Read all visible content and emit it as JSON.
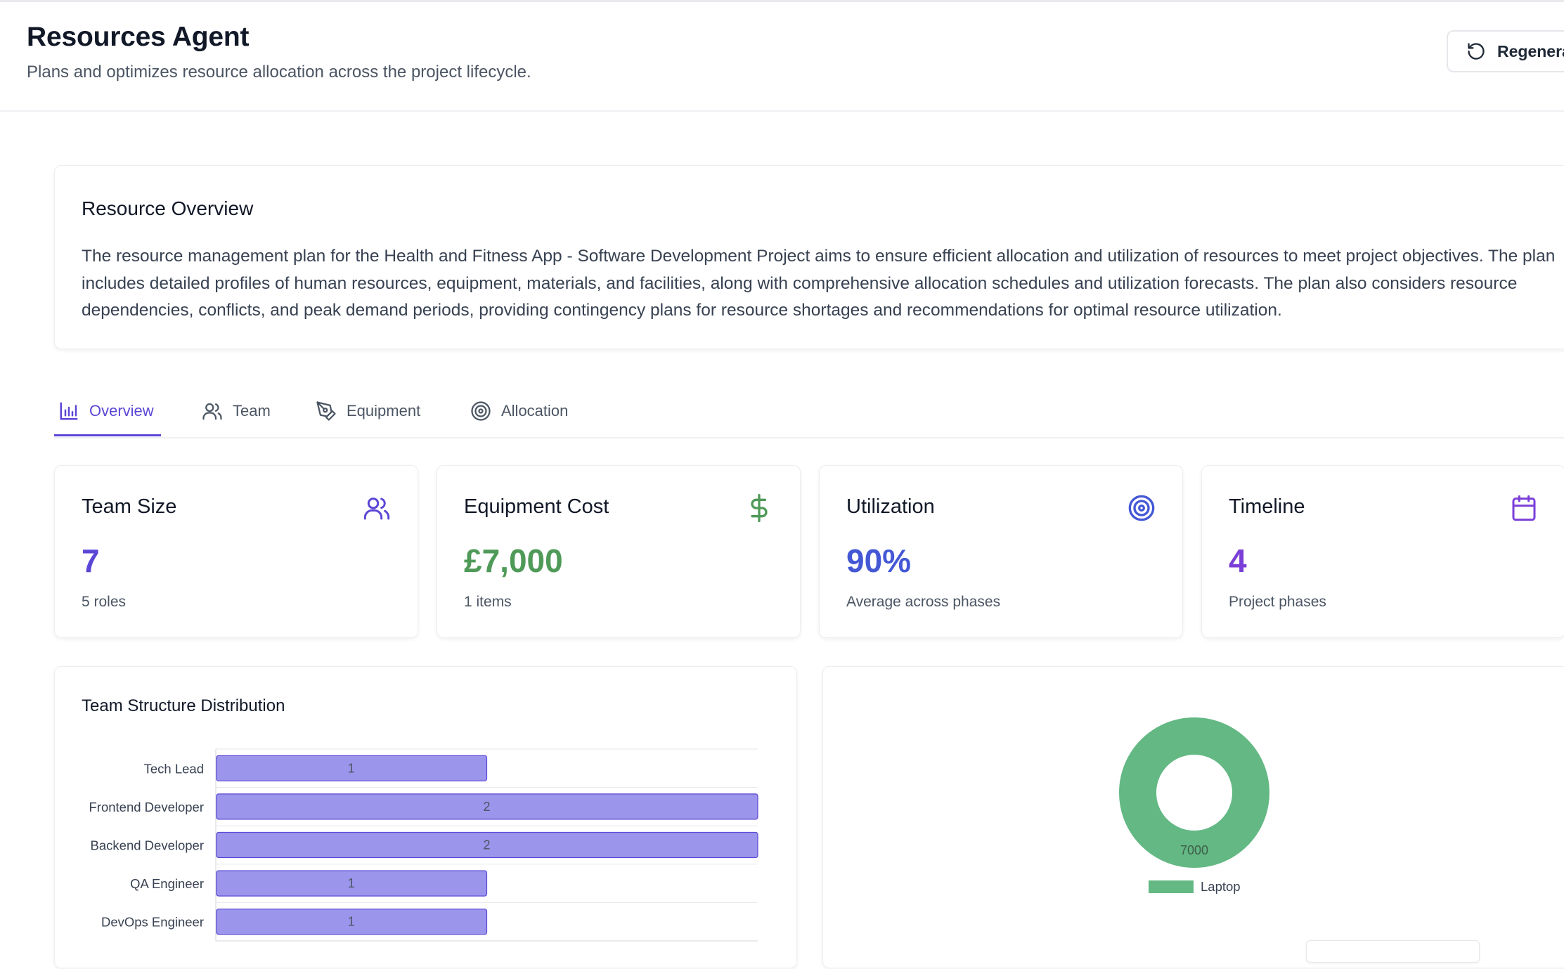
{
  "header": {
    "title": "Resources Agent",
    "subtitle": "Plans and optimizes resource allocation across the project lifecycle.",
    "regenerate_label": "Regenerate",
    "regenerate_icon": "rotate-ccw-icon"
  },
  "overview": {
    "title": "Resource Overview",
    "text": "The resource management plan for the Health and Fitness App - Software Development Project aims to ensure efficient allocation and utilization of resources to meet project objectives. The plan includes detailed profiles of human resources, equipment, materials, and facilities, along with comprehensive allocation schedules and utilization forecasts. The plan also considers resource dependencies, conflicts, and peak demand periods, providing contingency plans for resource shortages and recommendations for optimal resource utilization."
  },
  "tabs": [
    {
      "label": "Overview",
      "icon": "bar-chart-icon",
      "active": true
    },
    {
      "label": "Team",
      "icon": "users-icon",
      "active": false
    },
    {
      "label": "Equipment",
      "icon": "pen-tool-icon",
      "active": false
    },
    {
      "label": "Allocation",
      "icon": "target-icon",
      "active": false
    }
  ],
  "stats": [
    {
      "title": "Team Size",
      "value": "7",
      "sub": "5 roles",
      "icon": "users-icon",
      "color": "#5b47d6"
    },
    {
      "title": "Equipment Cost",
      "value": "£7,000",
      "sub": "1 items",
      "icon": "dollar-sign-icon",
      "color": "#4f9a58"
    },
    {
      "title": "Utilization",
      "value": "90%",
      "sub": "Average across phases",
      "icon": "target-icon",
      "color": "#4458d6"
    },
    {
      "title": "Timeline",
      "value": "4",
      "sub": "Project phases",
      "icon": "calendar-icon",
      "color": "#7b3fd8"
    }
  ],
  "team_chart": {
    "title": "Team Structure Distribution"
  },
  "chart_data": [
    {
      "type": "bar",
      "orientation": "horizontal",
      "title": "Team Structure Distribution",
      "categories": [
        "Tech Lead",
        "Frontend Developer",
        "Backend Developer",
        "QA Engineer",
        "DevOps Engineer"
      ],
      "values": [
        1,
        2,
        2,
        1,
        1
      ],
      "xlim": [
        0,
        2
      ],
      "grid": true,
      "color": "#9b95eb"
    },
    {
      "type": "pie",
      "donut": true,
      "labels": [
        "Laptop"
      ],
      "values": [
        7000
      ],
      "legend": "bottom",
      "color": "#63b883"
    }
  ]
}
